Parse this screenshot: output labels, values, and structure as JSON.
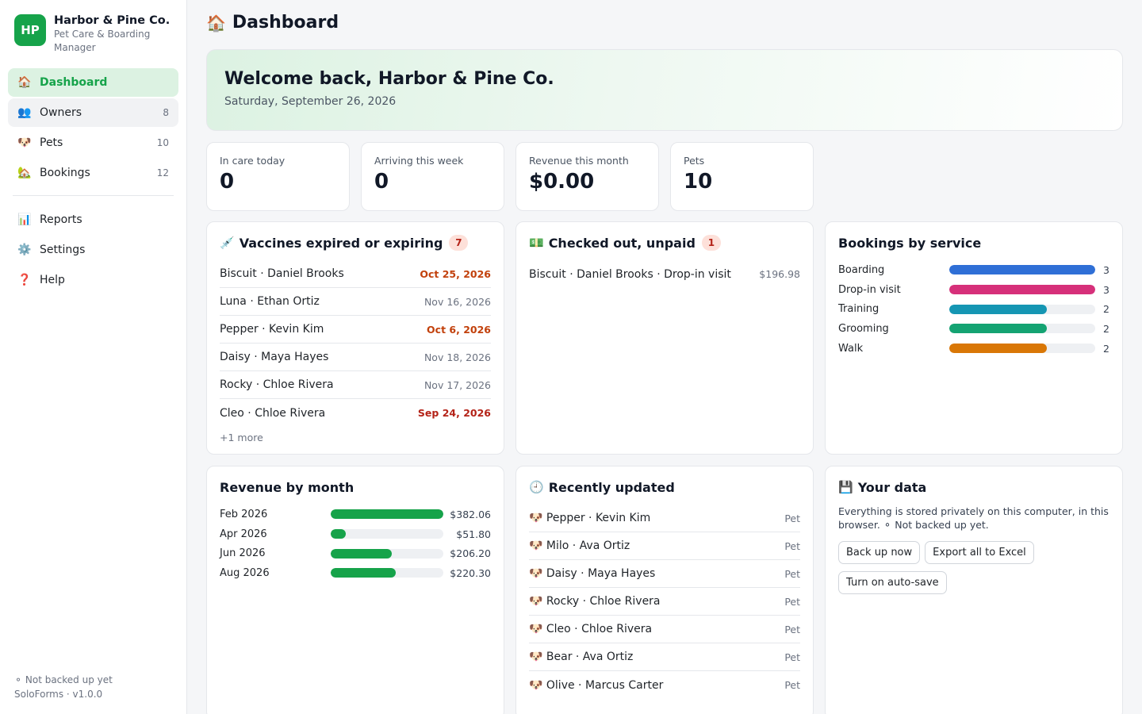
{
  "brand": {
    "logo": "HP",
    "name": "Harbor & Pine Co.",
    "subtitle": "Pet Care & Boarding Manager"
  },
  "nav": {
    "main": [
      {
        "icon": "🏠",
        "icon_name": "house-icon",
        "label": "Dashboard",
        "count": ""
      },
      {
        "icon": "👥",
        "icon_name": "people-icon",
        "label": "Owners",
        "count": "8"
      },
      {
        "icon": "🐶",
        "icon_name": "dog-icon",
        "label": "Pets",
        "count": "10"
      },
      {
        "icon": "🏡",
        "icon_name": "home-garden-icon",
        "label": "Bookings",
        "count": "12"
      }
    ],
    "secondary": [
      {
        "icon": "📊",
        "icon_name": "chart-icon",
        "label": "Reports"
      },
      {
        "icon": "⚙️",
        "icon_name": "gear-icon",
        "label": "Settings"
      },
      {
        "icon": "❓",
        "icon_name": "question-icon",
        "label": "Help"
      }
    ]
  },
  "sidebar_footer": {
    "backup_status": "⚬ Not backed up yet",
    "version": "SoloForms · v1.0.0"
  },
  "page": {
    "title_icon": "🏠",
    "title": "Dashboard"
  },
  "welcome": {
    "heading": "Welcome back, Harbor & Pine Co.",
    "date": "Saturday, September 26, 2026"
  },
  "stats": [
    {
      "label": "In care today",
      "value": "0"
    },
    {
      "label": "Arriving this week",
      "value": "0"
    },
    {
      "label": "Revenue this month",
      "value": "$0.00"
    },
    {
      "label": "Pets",
      "value": "10"
    }
  ],
  "vaccines": {
    "icon": "💉",
    "title": "Vaccines expired or expiring",
    "badge": "7",
    "items": [
      {
        "name": "Biscuit · Daniel Brooks",
        "date": "Oct 25, 2026",
        "status": "warn"
      },
      {
        "name": "Luna · Ethan Ortiz",
        "date": "Nov 16, 2026",
        "status": "normal"
      },
      {
        "name": "Pepper · Kevin Kim",
        "date": "Oct 6, 2026",
        "status": "warn"
      },
      {
        "name": "Daisy · Maya Hayes",
        "date": "Nov 18, 2026",
        "status": "normal"
      },
      {
        "name": "Rocky · Chloe Rivera",
        "date": "Nov 17, 2026",
        "status": "normal"
      },
      {
        "name": "Cleo · Chloe Rivera",
        "date": "Sep 24, 2026",
        "status": "danger"
      }
    ],
    "more": "+1 more"
  },
  "unpaid": {
    "icon": "💵",
    "title": "Checked out, unpaid",
    "badge": "1",
    "items": [
      {
        "name": "Biscuit · Daniel Brooks · Drop-in visit",
        "amount": "$196.98"
      }
    ]
  },
  "bookings_by_service": {
    "title": "Bookings by service",
    "max": 3,
    "items": [
      {
        "label": "Boarding",
        "value": 3,
        "color": "#2f6fd6"
      },
      {
        "label": "Drop-in visit",
        "value": 3,
        "color": "#d6307a"
      },
      {
        "label": "Training",
        "value": 2,
        "color": "#1596b3"
      },
      {
        "label": "Grooming",
        "value": 2,
        "color": "#14a372"
      },
      {
        "label": "Walk",
        "value": 2,
        "color": "#d97706"
      }
    ]
  },
  "revenue_by_month": {
    "title": "Revenue by month",
    "max": 382.06,
    "color": "#16a34a",
    "items": [
      {
        "label": "Feb 2026",
        "value": 382.06,
        "display": "$382.06"
      },
      {
        "label": "Apr 2026",
        "value": 51.8,
        "display": "$51.80"
      },
      {
        "label": "Jun 2026",
        "value": 206.2,
        "display": "$206.20"
      },
      {
        "label": "Aug 2026",
        "value": 220.3,
        "display": "$220.30"
      }
    ]
  },
  "recent": {
    "icon": "🕘",
    "title": "Recently updated",
    "items": [
      {
        "icon": "🐶",
        "name": "Pepper · Kevin Kim",
        "type": "Pet"
      },
      {
        "icon": "🐶",
        "name": "Milo · Ava Ortiz",
        "type": "Pet"
      },
      {
        "icon": "🐶",
        "name": "Daisy · Maya Hayes",
        "type": "Pet"
      },
      {
        "icon": "🐶",
        "name": "Rocky · Chloe Rivera",
        "type": "Pet"
      },
      {
        "icon": "🐶",
        "name": "Cleo · Chloe Rivera",
        "type": "Pet"
      },
      {
        "icon": "🐶",
        "name": "Bear · Ava Ortiz",
        "type": "Pet"
      },
      {
        "icon": "🐶",
        "name": "Olive · Marcus Carter",
        "type": "Pet"
      }
    ]
  },
  "your_data": {
    "icon": "💾",
    "title": "Your data",
    "text": "Everything is stored privately on this computer, in this browser. ⚬ Not backed up yet.",
    "buttons": {
      "backup": "Back up now",
      "export": "Export all to Excel",
      "autosave": "Turn on auto-save"
    }
  }
}
